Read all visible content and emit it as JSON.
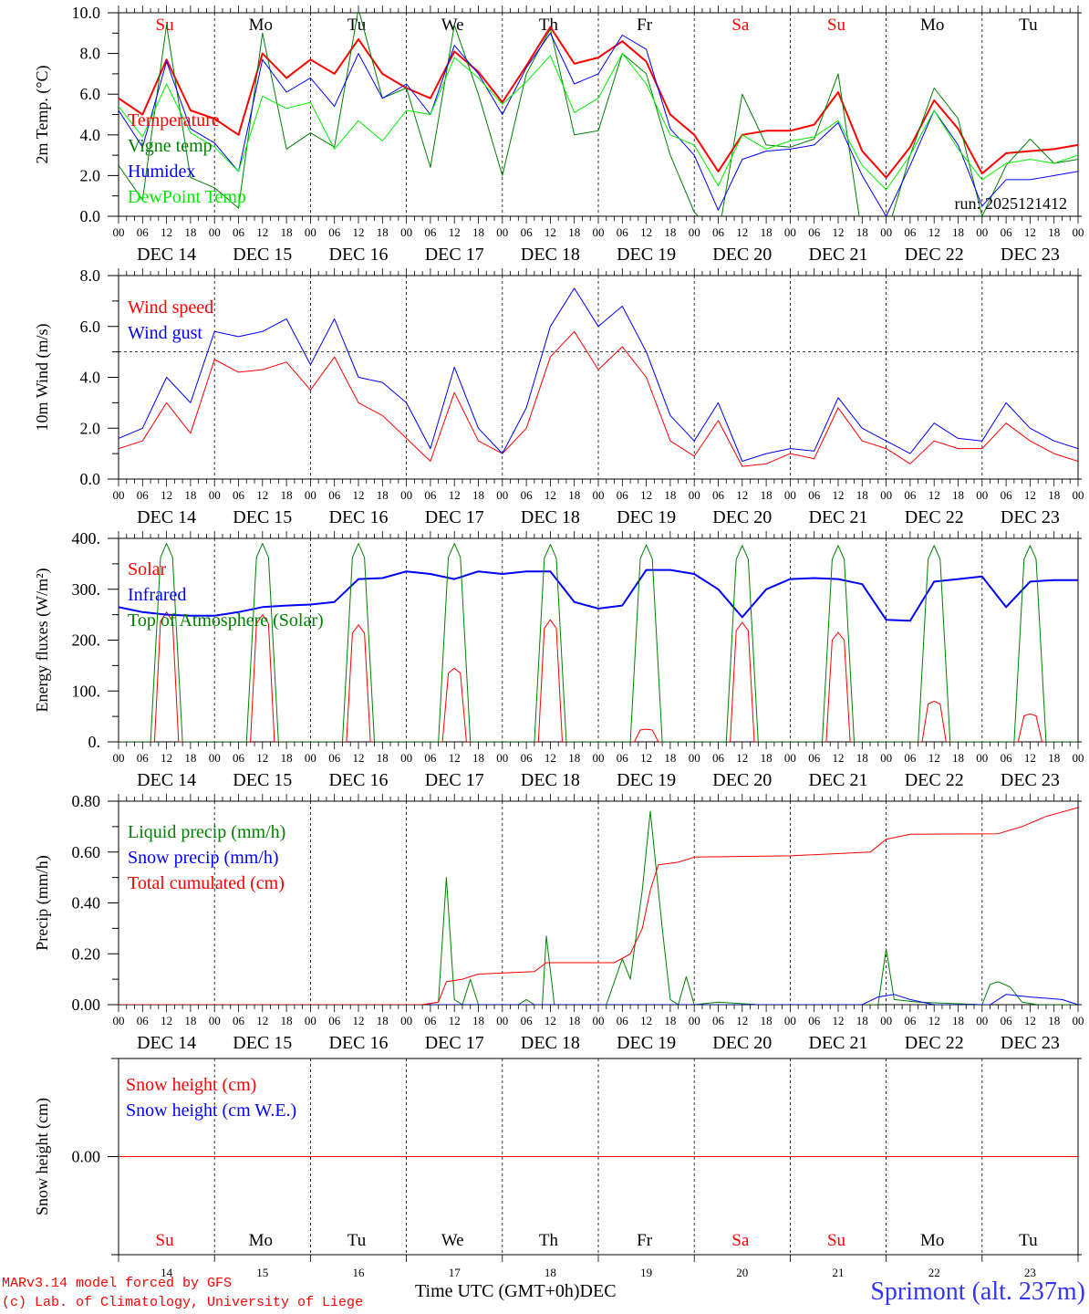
{
  "header": {
    "run": "run: 2025121412"
  },
  "days": {
    "weekday": [
      "Su",
      "Mo",
      "Tu",
      "We",
      "Th",
      "Fr",
      "Sa",
      "Su",
      "Mo",
      "Tu"
    ],
    "weekend": [
      true,
      false,
      false,
      false,
      false,
      false,
      true,
      true,
      false,
      false
    ],
    "date_labels": [
      "DEC 14",
      "DEC 15",
      "DEC 16",
      "DEC 17",
      "DEC 18",
      "DEC 19",
      "DEC 20",
      "DEC 21",
      "DEC 22",
      "DEC 23"
    ],
    "day_numbers": [
      "14",
      "15",
      "16",
      "17",
      "18",
      "19",
      "20",
      "21",
      "22",
      "23"
    ],
    "hour_labels": [
      "00",
      "06",
      "12",
      "18"
    ]
  },
  "footer": {
    "credit1": "MARv3.14 model forced by GFS",
    "credit2": "(c) Lab. of Climatology, University of Liege",
    "xlabel": "Time UTC (GMT+0h)",
    "month": "DEC",
    "station": "Sprimont (alt. 237m)"
  },
  "colors": {
    "red": "#ff0000",
    "blue": "#0000ff",
    "green": "#008000",
    "lightgreen": "#00ee00",
    "black": "#000000"
  },
  "chart_data": [
    {
      "type": "line",
      "ylabel": "2m Temp. (°C)",
      "ylim": [
        0,
        10
      ],
      "yticks": [
        0,
        2,
        4,
        6,
        8,
        10
      ],
      "ytick_labels": [
        "0.0",
        "2.0",
        "4.0",
        "6.0",
        "8.0",
        "10.0"
      ],
      "xlim_hours": [
        0,
        240
      ],
      "series": [
        {
          "name": "Temperature",
          "color": "#ff0000",
          "width": 2,
          "step_h": 6,
          "values": [
            5.8,
            5.0,
            7.7,
            5.2,
            4.8,
            4.0,
            8.0,
            6.8,
            7.7,
            7.0,
            8.7,
            7.0,
            6.3,
            5.8,
            8.1,
            7.1,
            5.6,
            7.4,
            9.3,
            7.5,
            7.8,
            8.6,
            7.6,
            5.0,
            4.0,
            2.2,
            4.0,
            4.2,
            4.2,
            4.5,
            6.1,
            3.2,
            1.9,
            3.4,
            5.7,
            4.3,
            2.1,
            3.1,
            3.2,
            3.3,
            3.5
          ]
        },
        {
          "name": "Vigne temp",
          "color": "#008000",
          "width": 1,
          "step_h": 6,
          "values": [
            2.5,
            0.8,
            9.4,
            1.9,
            1.4,
            0.4,
            9.0,
            3.3,
            4.1,
            3.4,
            10.2,
            5.8,
            6.3,
            2.4,
            9.4,
            6.0,
            2.0,
            7.0,
            9.2,
            4.0,
            4.2,
            8.0,
            7.0,
            3.0,
            0.2,
            -1.0,
            6.0,
            3.5,
            3.4,
            3.8,
            7.0,
            -1.0,
            -1.0,
            3.0,
            6.3,
            4.8,
            0.0,
            2.5,
            3.8,
            2.6,
            2.8
          ]
        },
        {
          "name": "Humidex",
          "color": "#0000ff",
          "width": 1,
          "step_h": 6,
          "values": [
            5.2,
            3.4,
            7.6,
            4.3,
            3.6,
            2.2,
            7.7,
            6.1,
            6.8,
            5.4,
            8.0,
            5.8,
            6.5,
            5.0,
            8.4,
            7.0,
            5.0,
            7.3,
            9.0,
            6.5,
            7.0,
            8.9,
            8.2,
            4.3,
            3.0,
            0.3,
            2.8,
            3.2,
            3.3,
            3.5,
            4.6,
            2.0,
            0.0,
            2.5,
            5.2,
            3.5,
            0.5,
            1.8,
            1.8,
            2.0,
            2.2
          ]
        },
        {
          "name": "DewPoint Temp",
          "color": "#00ee00",
          "width": 1,
          "step_h": 6,
          "values": [
            5.4,
            3.9,
            6.5,
            4.1,
            3.4,
            2.2,
            5.9,
            5.3,
            5.6,
            3.3,
            4.7,
            3.7,
            5.2,
            5.0,
            7.8,
            6.8,
            5.5,
            6.6,
            7.9,
            5.1,
            5.8,
            8.0,
            6.5,
            4.0,
            3.5,
            1.5,
            4.0,
            3.3,
            3.7,
            3.9,
            4.7,
            2.5,
            1.3,
            3.0,
            5.2,
            3.3,
            1.8,
            2.6,
            2.8,
            2.6,
            3.0
          ]
        }
      ]
    },
    {
      "type": "line",
      "ylabel": "10m Wind (m/s)",
      "ylim": [
        0,
        8
      ],
      "yticks": [
        0,
        2,
        4,
        6,
        8
      ],
      "ytick_labels": [
        "0.0",
        "2.0",
        "4.0",
        "6.0",
        "8.0"
      ],
      "ref_line": 5,
      "xlim_hours": [
        0,
        240
      ],
      "series": [
        {
          "name": "Wind speed",
          "color": "#ff0000",
          "width": 1,
          "step_h": 6,
          "values": [
            1.2,
            1.5,
            3.0,
            1.8,
            4.7,
            4.2,
            4.3,
            4.6,
            3.5,
            4.8,
            3.0,
            2.5,
            1.6,
            0.7,
            3.4,
            1.5,
            1.0,
            2.0,
            4.8,
            5.8,
            4.3,
            5.2,
            4.0,
            1.5,
            0.9,
            2.3,
            0.5,
            0.6,
            1.0,
            0.8,
            2.8,
            1.5,
            1.2,
            0.6,
            1.5,
            1.2,
            1.2,
            2.2,
            1.5,
            1.0,
            0.7
          ]
        },
        {
          "name": "Wind gust",
          "color": "#0000ff",
          "width": 1,
          "step_h": 6,
          "values": [
            1.6,
            2.0,
            4.0,
            3.0,
            5.8,
            5.6,
            5.8,
            6.3,
            4.5,
            6.3,
            4.0,
            3.8,
            3.0,
            1.2,
            4.4,
            2.0,
            1.0,
            2.8,
            6.0,
            7.5,
            6.0,
            6.8,
            5.0,
            2.5,
            1.5,
            3.0,
            0.7,
            1.0,
            1.2,
            1.1,
            3.2,
            2.0,
            1.5,
            1.0,
            2.2,
            1.6,
            1.5,
            3.0,
            2.0,
            1.5,
            1.2
          ]
        }
      ]
    },
    {
      "type": "line",
      "ylabel": "Energy fluxes (W/m²)",
      "ylim": [
        0,
        400
      ],
      "yticks": [
        0,
        100,
        200,
        300,
        400
      ],
      "ytick_labels": [
        "0.",
        "100.",
        "200.",
        "300.",
        "400."
      ],
      "xlim_hours": [
        0,
        240
      ],
      "series": [
        {
          "name": "Solar",
          "color": "#ff0000",
          "width": 1,
          "daily_peaks": [
            255,
            250,
            230,
            145,
            240,
            25,
            235,
            215,
            80,
            55
          ],
          "window_h": [
            9,
            15
          ]
        },
        {
          "name": "Infrared",
          "color": "#0000ff",
          "width": 2,
          "step_h": 6,
          "values": [
            265,
            255,
            250,
            248,
            248,
            255,
            265,
            268,
            270,
            275,
            320,
            322,
            335,
            330,
            320,
            335,
            330,
            335,
            335,
            275,
            262,
            268,
            338,
            338,
            330,
            300,
            245,
            300,
            320,
            322,
            320,
            310,
            240,
            238,
            315,
            320,
            325,
            265,
            315,
            318,
            318
          ]
        },
        {
          "name": "Top of Atmosphere (Solar)",
          "color": "#008000",
          "width": 1,
          "daily_peaks": [
            390,
            390,
            390,
            390,
            388,
            387,
            386,
            386,
            386,
            386
          ],
          "window_h": [
            8,
            16
          ]
        }
      ]
    },
    {
      "type": "line",
      "ylabel": "Precip (mm/h)",
      "ylim": [
        0,
        0.8
      ],
      "yticks": [
        0,
        0.2,
        0.4,
        0.6,
        0.8
      ],
      "ytick_labels": [
        "0.00",
        "0.20",
        "0.40",
        "0.60",
        "0.80"
      ],
      "xlim_hours": [
        0,
        240
      ],
      "series": [
        {
          "name": "Liquid precip (mm/h)",
          "color": "#008000",
          "width": 1,
          "points": [
            [
              0,
              0
            ],
            [
              76,
              0
            ],
            [
              80,
              0.01
            ],
            [
              82,
              0.5
            ],
            [
              84,
              0.02
            ],
            [
              86,
              0.0
            ],
            [
              88,
              0.1
            ],
            [
              90,
              0.0
            ],
            [
              100,
              0.0
            ],
            [
              102,
              0.02
            ],
            [
              104,
              0.0
            ],
            [
              106,
              0.0
            ],
            [
              107,
              0.27
            ],
            [
              109,
              0.0
            ],
            [
              122,
              0.0
            ],
            [
              126,
              0.18
            ],
            [
              128,
              0.1
            ],
            [
              131,
              0.45
            ],
            [
              133,
              0.76
            ],
            [
              136,
              0.3
            ],
            [
              138,
              0.02
            ],
            [
              140,
              0.0
            ],
            [
              142,
              0.11
            ],
            [
              144,
              0.0
            ],
            [
              150,
              0.01
            ],
            [
              160,
              0.0
            ],
            [
              190,
              0.0
            ],
            [
              192,
              0.22
            ],
            [
              194,
              0.02
            ],
            [
              200,
              0.01
            ],
            [
              216,
              0.0
            ],
            [
              218,
              0.08
            ],
            [
              220,
              0.09
            ],
            [
              223,
              0.07
            ],
            [
              226,
              0.01
            ],
            [
              230,
              0.0
            ],
            [
              240,
              0.0
            ]
          ]
        },
        {
          "name": "Snow precip (mm/h)",
          "color": "#0000ff",
          "width": 1,
          "points": [
            [
              0,
              0
            ],
            [
              186,
              0
            ],
            [
              190,
              0.03
            ],
            [
              194,
              0.04
            ],
            [
              198,
              0.02
            ],
            [
              204,
              0.0
            ],
            [
              218,
              0.0
            ],
            [
              222,
              0.04
            ],
            [
              228,
              0.03
            ],
            [
              236,
              0.02
            ],
            [
              240,
              0.0
            ]
          ]
        },
        {
          "name": "Total cumulated (cm)",
          "color": "#ff0000",
          "width": 1,
          "points": [
            [
              0,
              0
            ],
            [
              76,
              0
            ],
            [
              80,
              0.01
            ],
            [
              82,
              0.09
            ],
            [
              86,
              0.1
            ],
            [
              90,
              0.12
            ],
            [
              104,
              0.13
            ],
            [
              107,
              0.165
            ],
            [
              124,
              0.165
            ],
            [
              128,
              0.2
            ],
            [
              131,
              0.3
            ],
            [
              133,
              0.45
            ],
            [
              135,
              0.55
            ],
            [
              140,
              0.56
            ],
            [
              144,
              0.58
            ],
            [
              168,
              0.585
            ],
            [
              188,
              0.6
            ],
            [
              192,
              0.65
            ],
            [
              198,
              0.67
            ],
            [
              220,
              0.672
            ],
            [
              226,
              0.7
            ],
            [
              232,
              0.74
            ],
            [
              240,
              0.775
            ]
          ]
        }
      ]
    },
    {
      "type": "line",
      "ylabel": "Snow height (cm)",
      "ylim": [
        -1,
        1
      ],
      "yticks": [
        0
      ],
      "ytick_labels": [
        "0.00"
      ],
      "xlim_hours": [
        0,
        240
      ],
      "series": [
        {
          "name": "Snow height (cm)",
          "color": "#ff0000",
          "width": 1,
          "points": [
            [
              0,
              0
            ],
            [
              240,
              0
            ]
          ]
        },
        {
          "name": "Snow height (cm W.E.)",
          "color": "#0000ff",
          "width": 1,
          "points": []
        }
      ]
    }
  ]
}
